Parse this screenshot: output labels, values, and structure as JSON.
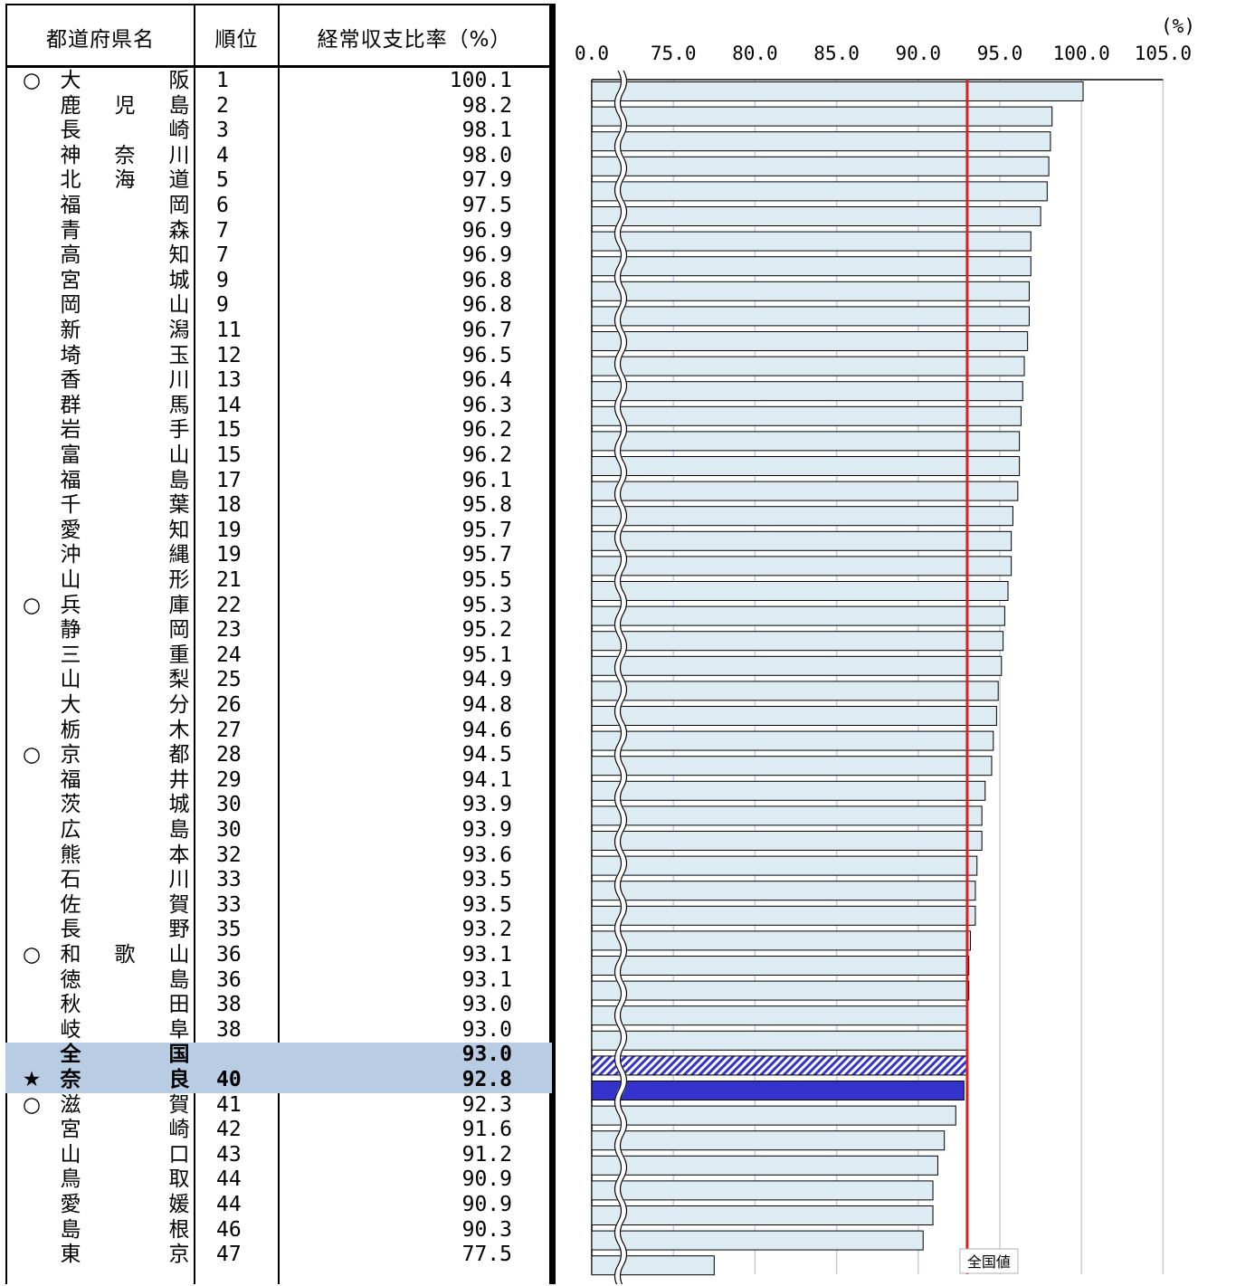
{
  "table": {
    "headers": {
      "name": "都道府県名",
      "rank": "順位",
      "value": "経常収支比率（%）"
    },
    "rows": [
      {
        "mark": "○",
        "name": [
          "大",
          "",
          "阪"
        ],
        "rank": "1",
        "value": "100.1"
      },
      {
        "mark": "",
        "name": [
          "鹿",
          "児",
          "島"
        ],
        "rank": "2",
        "value": "98.2"
      },
      {
        "mark": "",
        "name": [
          "長",
          "",
          "崎"
        ],
        "rank": "3",
        "value": "98.1"
      },
      {
        "mark": "",
        "name": [
          "神",
          "奈",
          "川"
        ],
        "rank": "4",
        "value": "98.0"
      },
      {
        "mark": "",
        "name": [
          "北",
          "海",
          "道"
        ],
        "rank": "5",
        "value": "97.9"
      },
      {
        "mark": "",
        "name": [
          "福",
          "",
          "岡"
        ],
        "rank": "6",
        "value": "97.5"
      },
      {
        "mark": "",
        "name": [
          "青",
          "",
          "森"
        ],
        "rank": "7",
        "value": "96.9"
      },
      {
        "mark": "",
        "name": [
          "高",
          "",
          "知"
        ],
        "rank": "7",
        "value": "96.9"
      },
      {
        "mark": "",
        "name": [
          "宮",
          "",
          "城"
        ],
        "rank": "9",
        "value": "96.8"
      },
      {
        "mark": "",
        "name": [
          "岡",
          "",
          "山"
        ],
        "rank": "9",
        "value": "96.8"
      },
      {
        "mark": "",
        "name": [
          "新",
          "",
          "潟"
        ],
        "rank": "11",
        "value": "96.7"
      },
      {
        "mark": "",
        "name": [
          "埼",
          "",
          "玉"
        ],
        "rank": "12",
        "value": "96.5"
      },
      {
        "mark": "",
        "name": [
          "香",
          "",
          "川"
        ],
        "rank": "13",
        "value": "96.4"
      },
      {
        "mark": "",
        "name": [
          "群",
          "",
          "馬"
        ],
        "rank": "14",
        "value": "96.3"
      },
      {
        "mark": "",
        "name": [
          "岩",
          "",
          "手"
        ],
        "rank": "15",
        "value": "96.2"
      },
      {
        "mark": "",
        "name": [
          "富",
          "",
          "山"
        ],
        "rank": "15",
        "value": "96.2"
      },
      {
        "mark": "",
        "name": [
          "福",
          "",
          "島"
        ],
        "rank": "17",
        "value": "96.1"
      },
      {
        "mark": "",
        "name": [
          "千",
          "",
          "葉"
        ],
        "rank": "18",
        "value": "95.8"
      },
      {
        "mark": "",
        "name": [
          "愛",
          "",
          "知"
        ],
        "rank": "19",
        "value": "95.7"
      },
      {
        "mark": "",
        "name": [
          "沖",
          "",
          "縄"
        ],
        "rank": "19",
        "value": "95.7"
      },
      {
        "mark": "",
        "name": [
          "山",
          "",
          "形"
        ],
        "rank": "21",
        "value": "95.5"
      },
      {
        "mark": "○",
        "name": [
          "兵",
          "",
          "庫"
        ],
        "rank": "22",
        "value": "95.3"
      },
      {
        "mark": "",
        "name": [
          "静",
          "",
          "岡"
        ],
        "rank": "23",
        "value": "95.2"
      },
      {
        "mark": "",
        "name": [
          "三",
          "",
          "重"
        ],
        "rank": "24",
        "value": "95.1"
      },
      {
        "mark": "",
        "name": [
          "山",
          "",
          "梨"
        ],
        "rank": "25",
        "value": "94.9"
      },
      {
        "mark": "",
        "name": [
          "大",
          "",
          "分"
        ],
        "rank": "26",
        "value": "94.8"
      },
      {
        "mark": "",
        "name": [
          "栃",
          "",
          "木"
        ],
        "rank": "27",
        "value": "94.6"
      },
      {
        "mark": "○",
        "name": [
          "京",
          "",
          "都"
        ],
        "rank": "28",
        "value": "94.5"
      },
      {
        "mark": "",
        "name": [
          "福",
          "",
          "井"
        ],
        "rank": "29",
        "value": "94.1"
      },
      {
        "mark": "",
        "name": [
          "茨",
          "",
          "城"
        ],
        "rank": "30",
        "value": "93.9"
      },
      {
        "mark": "",
        "name": [
          "広",
          "",
          "島"
        ],
        "rank": "30",
        "value": "93.9"
      },
      {
        "mark": "",
        "name": [
          "熊",
          "",
          "本"
        ],
        "rank": "32",
        "value": "93.6"
      },
      {
        "mark": "",
        "name": [
          "石",
          "",
          "川"
        ],
        "rank": "33",
        "value": "93.5"
      },
      {
        "mark": "",
        "name": [
          "佐",
          "",
          "賀"
        ],
        "rank": "33",
        "value": "93.5"
      },
      {
        "mark": "",
        "name": [
          "長",
          "",
          "野"
        ],
        "rank": "35",
        "value": "93.2"
      },
      {
        "mark": "○",
        "name": [
          "和",
          "歌",
          "山"
        ],
        "rank": "36",
        "value": "93.1"
      },
      {
        "mark": "",
        "name": [
          "徳",
          "",
          "島"
        ],
        "rank": "36",
        "value": "93.1"
      },
      {
        "mark": "",
        "name": [
          "秋",
          "",
          "田"
        ],
        "rank": "38",
        "value": "93.0"
      },
      {
        "mark": "",
        "name": [
          "岐",
          "",
          "阜"
        ],
        "rank": "38",
        "value": "93.0"
      },
      {
        "mark": "",
        "name": [
          "全",
          "",
          "国"
        ],
        "rank": "",
        "value": "93.0",
        "highlight": true,
        "bold": true,
        "kind": "national"
      },
      {
        "mark": "★",
        "name": [
          "奈",
          "",
          "良"
        ],
        "rank": "40",
        "value": "92.8",
        "highlight": true,
        "bold": true,
        "kind": "nara"
      },
      {
        "mark": "○",
        "name": [
          "滋",
          "",
          "賀"
        ],
        "rank": "41",
        "value": "92.3"
      },
      {
        "mark": "",
        "name": [
          "宮",
          "",
          "崎"
        ],
        "rank": "42",
        "value": "91.6"
      },
      {
        "mark": "",
        "name": [
          "山",
          "",
          "口"
        ],
        "rank": "43",
        "value": "91.2"
      },
      {
        "mark": "",
        "name": [
          "鳥",
          "",
          "取"
        ],
        "rank": "44",
        "value": "90.9"
      },
      {
        "mark": "",
        "name": [
          "愛",
          "",
          "媛"
        ],
        "rank": "44",
        "value": "90.9"
      },
      {
        "mark": "",
        "name": [
          "島",
          "",
          "根"
        ],
        "rank": "46",
        "value": "90.3"
      },
      {
        "mark": "",
        "name": [
          "東",
          "",
          "京"
        ],
        "rank": "47",
        "value": "77.5"
      }
    ]
  },
  "chart_data": {
    "type": "bar",
    "orientation": "horizontal",
    "unit": "(%)",
    "x_ticks": [
      "0.0",
      "75.0",
      "80.0",
      "85.0",
      "90.0",
      "95.0",
      "100.0",
      "105.0"
    ],
    "x_tick_values": [
      0,
      75,
      80,
      85,
      90,
      95,
      100,
      105
    ],
    "axis_break": "0 to 75",
    "xlim": [
      70,
      105
    ],
    "reference_line": {
      "value": 93.0,
      "label": "全国値",
      "color": "#e8191d"
    },
    "colors": {
      "bar_fill": "#dcecf2",
      "bar_stroke": "#000000",
      "nara_fill": "#3333cc",
      "national_pattern": "#3333cc",
      "grid": "#c8ccd8",
      "highlight_row": "#b8cce4"
    },
    "categories": [
      "大阪",
      "鹿児島",
      "長崎",
      "神奈川",
      "北海道",
      "福岡",
      "青森",
      "高知",
      "宮城",
      "岡山",
      "新潟",
      "埼玉",
      "香川",
      "群馬",
      "岩手",
      "富山",
      "福島",
      "千葉",
      "愛知",
      "沖縄",
      "山形",
      "兵庫",
      "静岡",
      "三重",
      "山梨",
      "大分",
      "栃木",
      "京都",
      "福井",
      "茨城",
      "広島",
      "熊本",
      "石川",
      "佐賀",
      "長野",
      "和歌山",
      "徳島",
      "秋田",
      "岐阜",
      "全国",
      "奈良",
      "滋賀",
      "宮崎",
      "山口",
      "鳥取",
      "愛媛",
      "島根",
      "東京"
    ],
    "values": [
      100.1,
      98.2,
      98.1,
      98.0,
      97.9,
      97.5,
      96.9,
      96.9,
      96.8,
      96.8,
      96.7,
      96.5,
      96.4,
      96.3,
      96.2,
      96.2,
      96.1,
      95.8,
      95.7,
      95.7,
      95.5,
      95.3,
      95.2,
      95.1,
      94.9,
      94.8,
      94.6,
      94.5,
      94.1,
      93.9,
      93.9,
      93.6,
      93.5,
      93.5,
      93.2,
      93.1,
      93.1,
      93.0,
      93.0,
      93.0,
      92.8,
      92.3,
      91.6,
      91.2,
      90.9,
      90.9,
      90.3,
      77.5
    ]
  }
}
